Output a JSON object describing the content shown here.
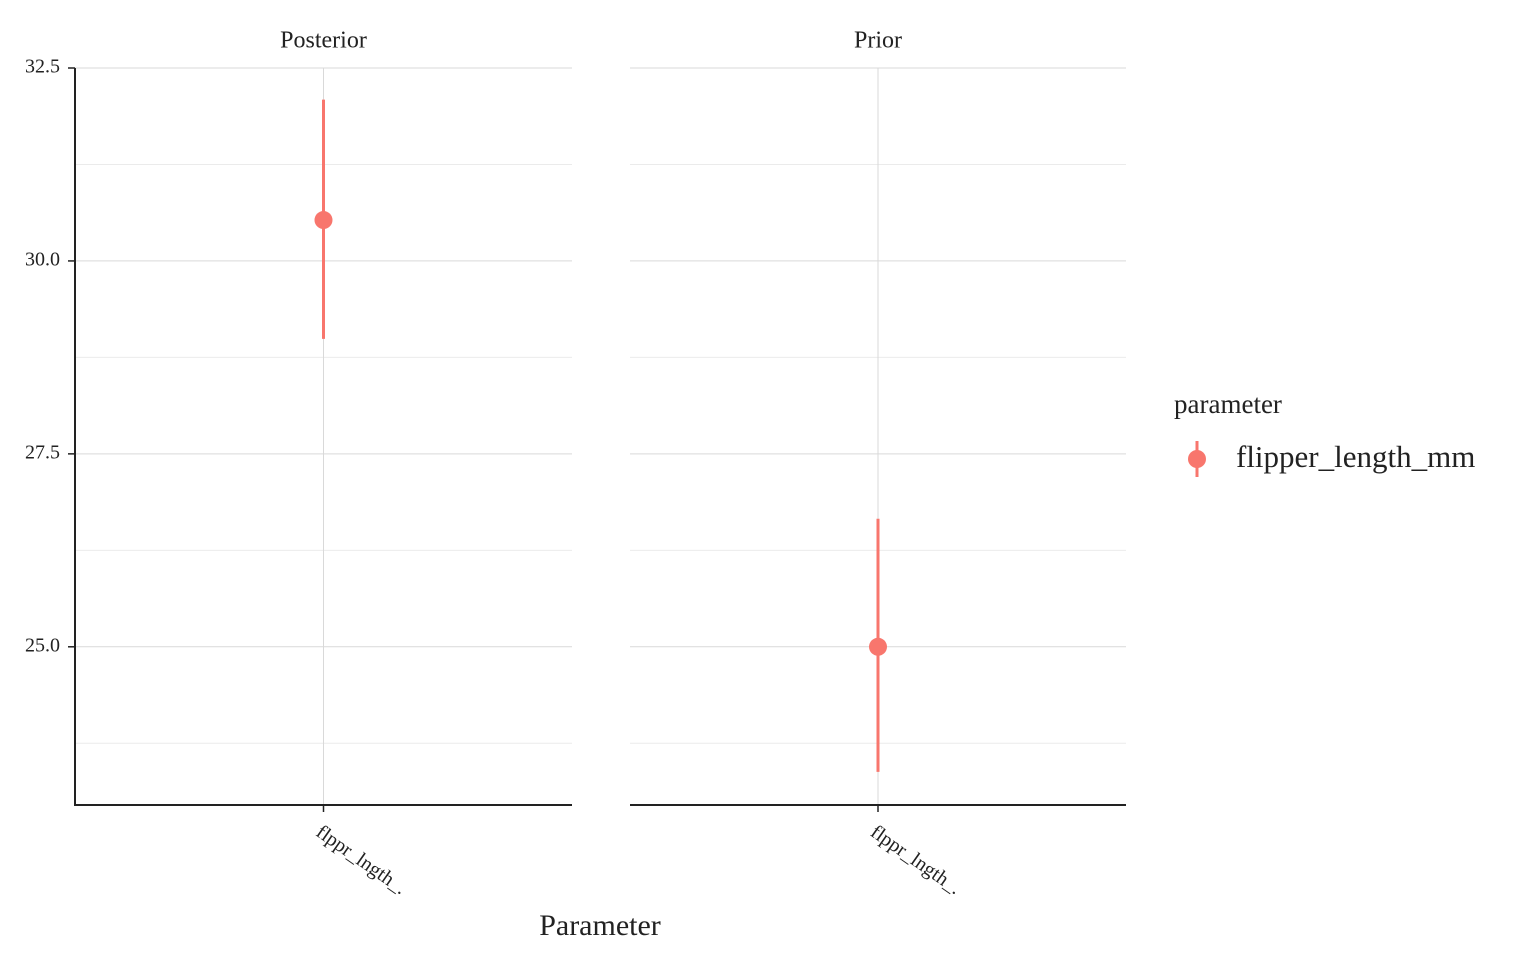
{
  "chart_data": {
    "type": "pointrange",
    "xlabel": "Parameter",
    "legend_title": "parameter",
    "series": [
      {
        "name": "flipper_length_mm",
        "color": "#f8766d"
      }
    ],
    "ylim": [
      22.95,
      32.5
    ],
    "yticks": [
      {
        "value": 25,
        "label": "25.0"
      },
      27.5,
      {
        "value": 30,
        "label": "30.0"
      },
      32.5
    ],
    "yminor": [
      23.75,
      26.25,
      28.75,
      31.25
    ],
    "grid": true,
    "facets": [
      {
        "title": "Posterior",
        "categories": [
          "flppr_lngth_."
        ],
        "values": [
          30.53
        ],
        "lower": [
          28.99
        ],
        "upper": [
          32.09
        ]
      },
      {
        "title": "Prior",
        "categories": [
          "flppr_lngth_."
        ],
        "values": [
          25.0
        ],
        "lower": [
          23.38
        ],
        "upper": [
          26.66
        ]
      }
    ]
  }
}
